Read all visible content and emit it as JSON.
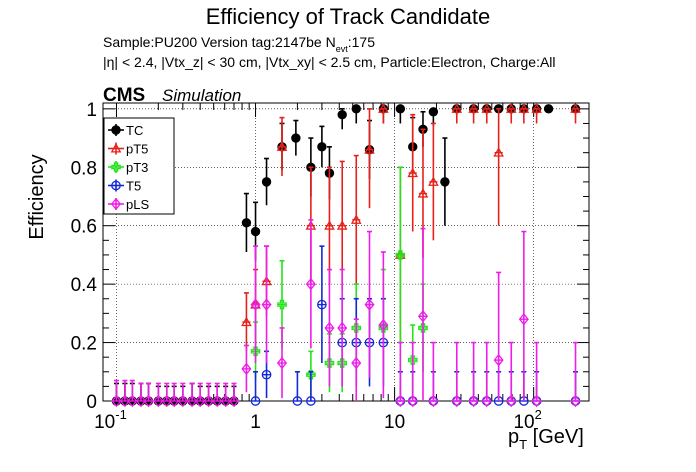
{
  "title": "Efficiency of Track Candidate",
  "info_line1": "Sample:PU200   Version tag:2147be  N",
  "info_line1_sub": "evt",
  "info_line1_tail": ":175",
  "info_line2": "|η| < 2.4, |Vtx_z| < 30 cm, |Vtx_xy| < 2.5 cm, Particle:Electron, Charge:All",
  "cms_label": "CMS",
  "sim_label": "Simulation",
  "colors": {
    "TC": "#000000",
    "pT5": "#e8201a",
    "pT3": "#23e31a",
    "T5": "#1328d8",
    "pLS": "#ee1de8"
  },
  "chart_data": {
    "type": "scatter",
    "title": "Efficiency of Track Candidate",
    "xlabel": "p_T [GeV]",
    "ylabel": "Efficiency",
    "xscale": "log",
    "xlim": [
      0.08,
      250
    ],
    "ylim": [
      0,
      1.02
    ],
    "grid": true,
    "legend_position": "top-left",
    "x_ticks": [
      "10^-1",
      "1",
      "10",
      "10^2"
    ],
    "y_ticks": [
      "0",
      "0.2",
      "0.4",
      "0.6",
      "0.8",
      "1"
    ],
    "series": [
      {
        "name": "TC",
        "marker": "filled-circle",
        "color": "#000000",
        "points": [
          [
            0.1,
            0
          ],
          [
            0.115,
            0
          ],
          [
            0.13,
            0
          ],
          [
            0.15,
            0
          ],
          [
            0.17,
            0
          ],
          [
            0.2,
            0
          ],
          [
            0.23,
            0
          ],
          [
            0.26,
            0
          ],
          [
            0.3,
            0
          ],
          [
            0.35,
            0
          ],
          [
            0.4,
            0
          ],
          [
            0.46,
            0
          ],
          [
            0.53,
            0
          ],
          [
            0.61,
            0
          ],
          [
            0.7,
            0
          ],
          [
            0.86,
            0.61
          ],
          [
            1.0,
            0.58
          ],
          [
            1.2,
            0.75
          ],
          [
            1.55,
            0.87
          ],
          [
            1.95,
            0.9
          ],
          [
            2.5,
            0.8
          ],
          [
            3.0,
            0.87
          ],
          [
            3.4,
            0.78
          ],
          [
            4.2,
            0.98
          ],
          [
            5.3,
            1.0
          ],
          [
            6.6,
            0.86
          ],
          [
            8.3,
            1.0
          ],
          [
            11,
            1.0
          ],
          [
            13.5,
            0.87
          ],
          [
            16,
            0.93
          ],
          [
            19,
            0.99
          ],
          [
            23,
            0.75
          ],
          [
            28,
            1.0
          ],
          [
            37,
            1.0
          ],
          [
            46,
            1.0
          ],
          [
            56,
            1.0
          ],
          [
            69,
            1.0
          ],
          [
            85,
            1.0
          ],
          [
            105,
            1.0
          ],
          [
            128,
            1.0
          ],
          [
            200,
            1.0
          ]
        ],
        "err": [
          0.06,
          0.06,
          0.06,
          0.06,
          0.06,
          0.05,
          0.05,
          0.05,
          0.05,
          0.06,
          0.05,
          0.05,
          0.05,
          0.05,
          0.05,
          0.1,
          0.1,
          0.08,
          0.08,
          0.06,
          0.1,
          0.07,
          0.09,
          0.05,
          0.05,
          0.1,
          0.05,
          0.05,
          0.1,
          0.06,
          0.05,
          0.15,
          0.01,
          0.01,
          0.01,
          0.01,
          0.01,
          0.01,
          0.01,
          0.01,
          0.01
        ]
      },
      {
        "name": "pT5",
        "marker": "open-triangle",
        "color": "#e8201a",
        "points": [
          [
            0.86,
            0.27
          ],
          [
            1.0,
            0.33
          ],
          [
            1.2,
            0.41
          ],
          [
            1.55,
            0.87
          ],
          [
            2.5,
            0.6
          ],
          [
            3.4,
            0.6
          ],
          [
            4.2,
            0.6
          ],
          [
            5.3,
            0.62
          ],
          [
            6.6,
            0.86
          ],
          [
            8.3,
            1.0
          ],
          [
            11,
            0.5
          ],
          [
            13.5,
            0.78
          ],
          [
            16,
            0.71
          ],
          [
            19,
            0.75
          ],
          [
            28,
            1.0
          ],
          [
            37,
            1.0
          ],
          [
            46,
            1.0
          ],
          [
            56,
            0.85
          ],
          [
            69,
            1.0
          ],
          [
            85,
            1.0
          ],
          [
            105,
            1.0
          ],
          [
            200,
            1.0
          ]
        ],
        "err": [
          0.1,
          0.12,
          0.12,
          0.1,
          0.2,
          0.2,
          0.22,
          0.22,
          0.2,
          0.05,
          0.3,
          0.2,
          0.22,
          0.2,
          0.05,
          0.05,
          0.05,
          0.25,
          0.05,
          0.05,
          0.05,
          0.05
        ]
      },
      {
        "name": "pT3",
        "marker": "open-cross",
        "color": "#23e31a",
        "points": [
          [
            1.0,
            0.17
          ],
          [
            1.55,
            0.33
          ],
          [
            2.5,
            0.09
          ],
          [
            3.4,
            0.13
          ],
          [
            4.2,
            0.13
          ],
          [
            5.3,
            0.25
          ],
          [
            8.3,
            0.25
          ],
          [
            11,
            0.5
          ],
          [
            13.5,
            0.14
          ],
          [
            16,
            0.25
          ]
        ],
        "err": [
          0.1,
          0.15,
          0.08,
          0.1,
          0.1,
          0.15,
          0.2,
          0.3,
          0.12,
          0.15
        ]
      },
      {
        "name": "T5",
        "marker": "open-circle",
        "color": "#1328d8",
        "points": [
          [
            1.2,
            0.09
          ],
          [
            3.0,
            0.33
          ],
          [
            4.2,
            0.2
          ],
          [
            5.3,
            0.2
          ],
          [
            6.6,
            0.2
          ],
          [
            8.3,
            0.2
          ],
          [
            1.0,
            0
          ],
          [
            2.0,
            0
          ],
          [
            2.5,
            0
          ],
          [
            11,
            0
          ],
          [
            13.5,
            0
          ],
          [
            19,
            0
          ],
          [
            28,
            0
          ],
          [
            37,
            0
          ],
          [
            46,
            0
          ],
          [
            56,
            0
          ],
          [
            69,
            0
          ],
          [
            85,
            0
          ],
          [
            105,
            0
          ],
          [
            200,
            0
          ]
        ],
        "err": [
          0.08,
          0.2,
          0.15,
          0.15,
          0.15,
          0.15,
          0.1,
          0.1,
          0.1,
          0.1,
          0.1,
          0.1,
          0.1,
          0.1,
          0.1,
          0.1,
          0.1,
          0.1,
          0.1,
          0.1
        ]
      },
      {
        "name": "pLS",
        "marker": "open-diamond",
        "color": "#ee1de8",
        "points": [
          [
            0.1,
            0
          ],
          [
            0.115,
            0
          ],
          [
            0.13,
            0
          ],
          [
            0.15,
            0
          ],
          [
            0.17,
            0
          ],
          [
            0.2,
            0
          ],
          [
            0.23,
            0
          ],
          [
            0.26,
            0
          ],
          [
            0.3,
            0
          ],
          [
            0.35,
            0
          ],
          [
            0.4,
            0
          ],
          [
            0.46,
            0
          ],
          [
            0.53,
            0
          ],
          [
            0.61,
            0
          ],
          [
            0.7,
            0
          ],
          [
            0.86,
            0.11
          ],
          [
            1.0,
            0.33
          ],
          [
            1.2,
            0.33
          ],
          [
            1.55,
            0.13
          ],
          [
            2.5,
            0.4
          ],
          [
            3.4,
            0.25
          ],
          [
            4.2,
            0.25
          ],
          [
            5.3,
            0.13
          ],
          [
            6.6,
            0.33
          ],
          [
            8.3,
            0.26
          ],
          [
            16,
            0.29
          ],
          [
            56,
            0.14
          ],
          [
            85,
            0.28
          ],
          [
            11,
            0
          ],
          [
            13.5,
            0
          ],
          [
            19,
            0
          ],
          [
            28,
            0
          ],
          [
            37,
            0
          ],
          [
            46,
            0
          ],
          [
            69,
            0
          ],
          [
            105,
            0
          ],
          [
            200,
            0
          ]
        ],
        "err": [
          0.07,
          0.07,
          0.07,
          0.06,
          0.06,
          0.06,
          0.06,
          0.06,
          0.06,
          0.06,
          0.06,
          0.06,
          0.06,
          0.06,
          0.06,
          0.08,
          0.2,
          0.2,
          0.12,
          0.22,
          0.2,
          0.2,
          0.15,
          0.25,
          0.25,
          0.3,
          0.3,
          0.3,
          0.2,
          0.2,
          0.2,
          0.2,
          0.2,
          0.2,
          0.2,
          0.2,
          0.2
        ]
      }
    ]
  }
}
